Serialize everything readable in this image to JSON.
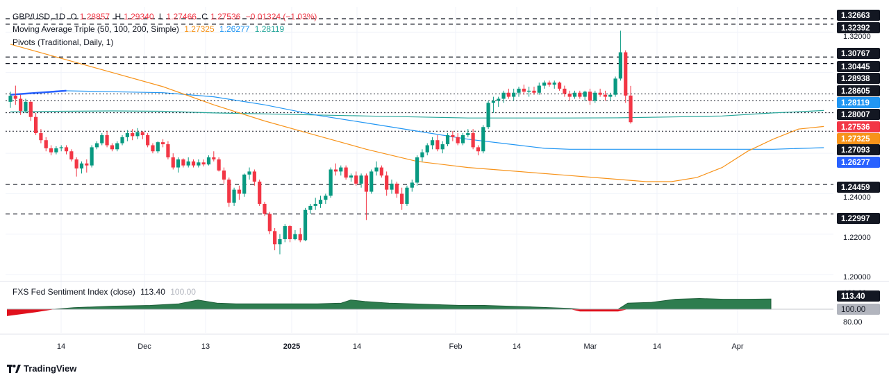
{
  "legend": {
    "symbol": "GBP/USD, 1D",
    "open_label": "O",
    "open": "1.28857",
    "high_label": "H",
    "high": "1.29340",
    "low_label": "L",
    "low": "1.27466",
    "close_label": "C",
    "close": "1.27536",
    "change": "−0.01324 (−1.03%)",
    "ma_label": "Moving Average Triple (50, 100, 200, Simple)",
    "ma_values": [
      "1.27325",
      "1.26277",
      "1.28119"
    ],
    "pivots_label": "Pivots (Traditional, Daily, 1)",
    "fxs_label": "FXS Fed Sentiment Index (close)",
    "fxs_value": "113.40",
    "fxs_ref": "100.00"
  },
  "brand": "TradingView",
  "colors": {
    "up": "#089981",
    "down": "#f23645",
    "ma50": "#f7931a",
    "ma100": "#2196f3",
    "ma200": "#26a69a",
    "fxs_up": "#2e7d4f",
    "fxs_down": "#e0111d"
  },
  "chart_data": [
    {
      "type": "candlestick",
      "title": "GBP/USD, 1D",
      "y_axis_ticks": [
        "1.32000",
        "1.24000",
        "1.22000",
        "1.20000"
      ],
      "ylim": [
        1.195,
        1.33
      ],
      "x_axis_ticks": [
        "14",
        "Dec",
        "13",
        "2025",
        "14",
        "Feb",
        "14",
        "Mar",
        "14",
        "Apr"
      ],
      "pivot_levels": [
        1.32663,
        1.32392,
        1.30767,
        1.30445,
        1.28938,
        1.28605,
        1.28007,
        1.27093,
        1.24459,
        1.22997
      ],
      "price_labels": [
        {
          "value": 1.32663,
          "label": "1.32663",
          "style": "dark"
        },
        {
          "value": 1.32392,
          "label": "1.32392",
          "style": "dark"
        },
        {
          "value": 1.30767,
          "label": "1.30767",
          "style": "dark"
        },
        {
          "value": 1.30445,
          "label": "1.30445",
          "style": "dark"
        },
        {
          "value": 1.28938,
          "label": "1.28938",
          "style": "dark"
        },
        {
          "value": 1.28605,
          "label": "1.28605",
          "style": "dark"
        },
        {
          "value": 1.28119,
          "label": "1.28119",
          "style": "teal"
        },
        {
          "value": 1.28007,
          "label": "1.28007",
          "style": "dark"
        },
        {
          "value": 1.27536,
          "label": "1.27536",
          "style": "red"
        },
        {
          "value": 1.27325,
          "label": "1.27325",
          "style": "orange"
        },
        {
          "value": 1.27093,
          "label": "1.27093",
          "style": "dark"
        },
        {
          "value": 1.26277,
          "label": "1.26277",
          "style": "blue"
        },
        {
          "value": 1.24459,
          "label": "1.24459",
          "style": "dark"
        },
        {
          "value": 1.22997,
          "label": "1.22997",
          "style": "dark"
        }
      ],
      "candles": [
        [
          1.2855,
          1.2905,
          1.2825,
          1.2885
        ],
        [
          1.2885,
          1.2935,
          1.284,
          1.287
        ],
        [
          1.287,
          1.289,
          1.279,
          1.281
        ],
        [
          1.281,
          1.287,
          1.28,
          1.2855
        ],
        [
          1.2855,
          1.286,
          1.276,
          1.278
        ],
        [
          1.278,
          1.28,
          1.269,
          1.27
        ],
        [
          1.27,
          1.272,
          1.265,
          1.2665
        ],
        [
          1.2665,
          1.268,
          1.261,
          1.2625
        ],
        [
          1.2625,
          1.264,
          1.259,
          1.2605
        ],
        [
          1.2605,
          1.2635,
          1.2595,
          1.2625
        ],
        [
          1.2625,
          1.264,
          1.261,
          1.263
        ],
        [
          1.263,
          1.264,
          1.2595,
          1.261
        ],
        [
          1.261,
          1.262,
          1.256,
          1.257
        ],
        [
          1.257,
          1.258,
          1.2485,
          1.2525
        ],
        [
          1.2525,
          1.256,
          1.25,
          1.255
        ],
        [
          1.255,
          1.257,
          1.2505,
          1.254
        ],
        [
          1.254,
          1.264,
          1.253,
          1.263
        ],
        [
          1.263,
          1.266,
          1.262,
          1.265
        ],
        [
          1.265,
          1.27,
          1.264,
          1.269
        ],
        [
          1.269,
          1.271,
          1.263,
          1.264
        ],
        [
          1.264,
          1.265,
          1.261,
          1.262
        ],
        [
          1.262,
          1.266,
          1.261,
          1.265
        ],
        [
          1.265,
          1.269,
          1.264,
          1.268
        ],
        [
          1.268,
          1.2715,
          1.266,
          1.27
        ],
        [
          1.27,
          1.272,
          1.2665,
          1.2685
        ],
        [
          1.2685,
          1.2725,
          1.267,
          1.2705
        ],
        [
          1.2705,
          1.271,
          1.267,
          1.269
        ],
        [
          1.269,
          1.27,
          1.263,
          1.264
        ],
        [
          1.264,
          1.265,
          1.26,
          1.261
        ],
        [
          1.261,
          1.266,
          1.26,
          1.2655
        ],
        [
          1.2655,
          1.267,
          1.263,
          1.2645
        ],
        [
          1.2645,
          1.266,
          1.257,
          1.258
        ],
        [
          1.258,
          1.26,
          1.252,
          1.253
        ],
        [
          1.253,
          1.258,
          1.2505,
          1.257
        ],
        [
          1.257,
          1.2575,
          1.253,
          1.254
        ],
        [
          1.254,
          1.258,
          1.253,
          1.256
        ],
        [
          1.256,
          1.257,
          1.253,
          1.254
        ],
        [
          1.254,
          1.257,
          1.253,
          1.2555
        ],
        [
          1.2555,
          1.257,
          1.2535,
          1.2545
        ],
        [
          1.2545,
          1.259,
          1.254,
          1.258
        ],
        [
          1.258,
          1.261,
          1.256,
          1.257
        ],
        [
          1.257,
          1.258,
          1.251,
          1.2515
        ],
        [
          1.2515,
          1.253,
          1.245,
          1.247
        ],
        [
          1.247,
          1.248,
          1.2335,
          1.2355
        ],
        [
          1.2355,
          1.243,
          1.234,
          1.242
        ],
        [
          1.242,
          1.244,
          1.237,
          1.24
        ],
        [
          1.24,
          1.25,
          1.2385,
          1.2495
        ],
        [
          1.2495,
          1.253,
          1.247,
          1.251
        ],
        [
          1.251,
          1.252,
          1.244,
          1.246
        ],
        [
          1.246,
          1.247,
          1.234,
          1.235
        ],
        [
          1.235,
          1.236,
          1.229,
          1.23
        ],
        [
          1.23,
          1.231,
          1.22,
          1.2215
        ],
        [
          1.2215,
          1.223,
          1.212,
          1.215
        ],
        [
          1.215,
          1.22,
          1.21,
          1.2175
        ],
        [
          1.2175,
          1.225,
          1.216,
          1.224
        ],
        [
          1.224,
          1.2245,
          1.216,
          1.2175
        ],
        [
          1.2175,
          1.222,
          1.217,
          1.22
        ],
        [
          1.22,
          1.223,
          1.216,
          1.217
        ],
        [
          1.217,
          1.233,
          1.2165,
          1.232
        ],
        [
          1.232,
          1.235,
          1.23,
          1.234
        ],
        [
          1.234,
          1.238,
          1.232,
          1.235
        ],
        [
          1.235,
          1.239,
          1.233,
          1.237
        ],
        [
          1.237,
          1.24,
          1.235,
          1.239
        ],
        [
          1.239,
          1.253,
          1.238,
          1.252
        ],
        [
          1.252,
          1.255,
          1.249,
          1.251
        ],
        [
          1.251,
          1.254,
          1.249,
          1.253
        ],
        [
          1.253,
          1.254,
          1.247,
          1.248
        ],
        [
          1.248,
          1.25,
          1.246,
          1.249
        ],
        [
          1.249,
          1.251,
          1.244,
          1.245
        ],
        [
          1.245,
          1.25,
          1.243,
          1.249
        ],
        [
          1.249,
          1.25,
          1.227,
          1.241
        ],
        [
          1.241,
          1.252,
          1.24,
          1.251
        ],
        [
          1.251,
          1.256,
          1.249,
          1.253
        ],
        [
          1.253,
          1.254,
          1.248,
          1.249
        ],
        [
          1.249,
          1.251,
          1.239,
          1.242
        ],
        [
          1.242,
          1.247,
          1.24,
          1.245
        ],
        [
          1.245,
          1.246,
          1.238,
          1.24
        ],
        [
          1.24,
          1.243,
          1.232,
          1.235
        ],
        [
          1.235,
          1.244,
          1.234,
          1.243
        ],
        [
          1.243,
          1.247,
          1.241,
          1.2455
        ],
        [
          1.2455,
          1.259,
          1.244,
          1.258
        ],
        [
          1.258,
          1.262,
          1.256,
          1.2605
        ],
        [
          1.2605,
          1.265,
          1.259,
          1.264
        ],
        [
          1.264,
          1.268,
          1.262,
          1.2665
        ],
        [
          1.2665,
          1.269,
          1.261,
          1.262
        ],
        [
          1.262,
          1.266,
          1.26,
          1.2645
        ],
        [
          1.2645,
          1.27,
          1.2635,
          1.269
        ],
        [
          1.269,
          1.271,
          1.266,
          1.268
        ],
        [
          1.268,
          1.27,
          1.264,
          1.265
        ],
        [
          1.265,
          1.27,
          1.264,
          1.269
        ],
        [
          1.269,
          1.272,
          1.268,
          1.27
        ],
        [
          1.27,
          1.272,
          1.262,
          1.263
        ],
        [
          1.263,
          1.264,
          1.259,
          1.261
        ],
        [
          1.261,
          1.274,
          1.26,
          1.273
        ],
        [
          1.273,
          1.286,
          1.272,
          1.285
        ],
        [
          1.285,
          1.288,
          1.28,
          1.286
        ],
        [
          1.286,
          1.288,
          1.283,
          1.287
        ],
        [
          1.287,
          1.291,
          1.285,
          1.29
        ],
        [
          1.29,
          1.292,
          1.287,
          1.288
        ],
        [
          1.288,
          1.292,
          1.286,
          1.29
        ],
        [
          1.29,
          1.293,
          1.288,
          1.292
        ],
        [
          1.292,
          1.294,
          1.289,
          1.2905
        ],
        [
          1.2905,
          1.293,
          1.288,
          1.291
        ],
        [
          1.291,
          1.293,
          1.289,
          1.29
        ],
        [
          1.29,
          1.295,
          1.289,
          1.2935
        ],
        [
          1.2935,
          1.296,
          1.292,
          1.295
        ],
        [
          1.295,
          1.296,
          1.293,
          1.294
        ],
        [
          1.294,
          1.296,
          1.292,
          1.295
        ],
        [
          1.295,
          1.2955,
          1.291,
          1.292
        ],
        [
          1.292,
          1.2935,
          1.288,
          1.2895
        ],
        [
          1.2895,
          1.291,
          1.286,
          1.288
        ],
        [
          1.288,
          1.291,
          1.287,
          1.29
        ],
        [
          1.29,
          1.291,
          1.287,
          1.288
        ],
        [
          1.288,
          1.291,
          1.286,
          1.2905
        ],
        [
          1.2905,
          1.292,
          1.284,
          1.286
        ],
        [
          1.286,
          1.291,
          1.285,
          1.29
        ],
        [
          1.29,
          1.292,
          1.288,
          1.289
        ],
        [
          1.289,
          1.291,
          1.286,
          1.288
        ],
        [
          1.288,
          1.29,
          1.286,
          1.289
        ],
        [
          1.289,
          1.298,
          1.288,
          1.297
        ],
        [
          1.297,
          1.3207,
          1.296,
          1.31
        ],
        [
          1.31,
          1.311,
          1.285,
          1.2886
        ],
        [
          1.2886,
          1.2934,
          1.2747,
          1.2754
        ]
      ],
      "ma50": [
        [
          0,
          1.314
        ],
        [
          10,
          1.307
        ],
        [
          20,
          1.3
        ],
        [
          30,
          1.293
        ],
        [
          40,
          1.284
        ],
        [
          50,
          1.276
        ],
        [
          60,
          1.269
        ],
        [
          70,
          1.262
        ],
        [
          80,
          1.256
        ],
        [
          90,
          1.253
        ],
        [
          100,
          1.251
        ],
        [
          110,
          1.249
        ],
        [
          120,
          1.247
        ],
        [
          125,
          1.246
        ],
        [
          130,
          1.246
        ],
        [
          135,
          1.248
        ],
        [
          140,
          1.253
        ],
        [
          145,
          1.261
        ],
        [
          150,
          1.267
        ],
        [
          155,
          1.272
        ],
        [
          160,
          1.2733
        ]
      ],
      "ma100": [
        [
          0,
          1.289
        ],
        [
          5,
          1.29
        ],
        [
          10,
          1.291
        ],
        [
          20,
          1.2905
        ],
        [
          30,
          1.29
        ],
        [
          40,
          1.288
        ],
        [
          50,
          1.284
        ],
        [
          60,
          1.279
        ],
        [
          70,
          1.275
        ],
        [
          80,
          1.271
        ],
        [
          90,
          1.267
        ],
        [
          100,
          1.264
        ],
        [
          105,
          1.2625
        ],
        [
          110,
          1.262
        ],
        [
          120,
          1.262
        ],
        [
          130,
          1.262
        ],
        [
          140,
          1.262
        ],
        [
          150,
          1.262
        ],
        [
          160,
          1.2628
        ]
      ],
      "ma200": [
        [
          0,
          1.2805
        ],
        [
          10,
          1.2808
        ],
        [
          20,
          1.281
        ],
        [
          30,
          1.2808
        ],
        [
          40,
          1.28
        ],
        [
          50,
          1.2795
        ],
        [
          60,
          1.279
        ],
        [
          70,
          1.2785
        ],
        [
          80,
          1.278
        ],
        [
          90,
          1.2775
        ],
        [
          100,
          1.2775
        ],
        [
          110,
          1.2775
        ],
        [
          120,
          1.2776
        ],
        [
          130,
          1.278
        ],
        [
          140,
          1.2785
        ],
        [
          150,
          1.28
        ],
        [
          160,
          1.2812
        ]
      ],
      "blue_stub": [
        [
          0,
          1.289
        ],
        [
          11,
          1.291
        ]
      ]
    },
    {
      "type": "area",
      "title": "FXS Fed Sentiment Index (close)",
      "y_axis_ticks": [
        "120.00",
        "80.00"
      ],
      "ylim": [
        75,
        128
      ],
      "baseline": 100,
      "last": 113.4,
      "series": [
        [
          0,
          91
        ],
        [
          6,
          96
        ],
        [
          10,
          100
        ],
        [
          14,
          102
        ],
        [
          18,
          103
        ],
        [
          22,
          104
        ],
        [
          30,
          105
        ],
        [
          36,
          107
        ],
        [
          40,
          112
        ],
        [
          44,
          108
        ],
        [
          48,
          107
        ],
        [
          55,
          107
        ],
        [
          65,
          107
        ],
        [
          70,
          108
        ],
        [
          72,
          112
        ],
        [
          75,
          110
        ],
        [
          80,
          108
        ],
        [
          85,
          107
        ],
        [
          90,
          106
        ],
        [
          95,
          105
        ],
        [
          100,
          105
        ],
        [
          105,
          104
        ],
        [
          110,
          103
        ],
        [
          118,
          101
        ],
        [
          120,
          97
        ],
        [
          125,
          97
        ],
        [
          128,
          97
        ],
        [
          130,
          108
        ],
        [
          135,
          109
        ],
        [
          140,
          113
        ],
        [
          145,
          114
        ],
        [
          150,
          113
        ],
        [
          155,
          113
        ],
        [
          160,
          113.4
        ]
      ]
    }
  ]
}
